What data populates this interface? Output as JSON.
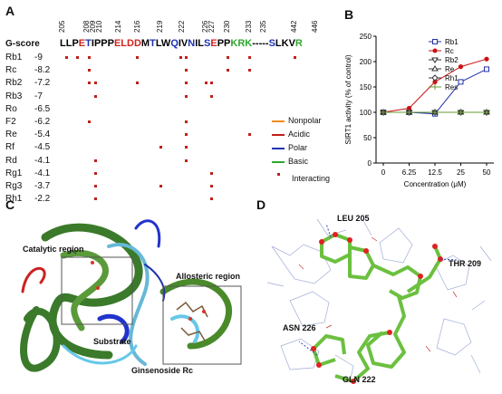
{
  "panelA": {
    "label": "A",
    "gscore_header": "G-score",
    "residue_numbers": [
      "205",
      "208",
      "209",
      "210",
      "214",
      "216",
      "219",
      "222",
      "226",
      "227",
      "230",
      "233",
      "235",
      "442",
      "446"
    ],
    "sequence": [
      {
        "t": "LL",
        "c": "#000"
      },
      {
        "t": "P",
        "c": "#000"
      },
      {
        "t": "E",
        "c": "#d0241c"
      },
      {
        "t": "T",
        "c": "#1a33b8"
      },
      {
        "t": "I",
        "c": "#000"
      },
      {
        "t": "PPP",
        "c": "#000"
      },
      {
        "t": "E",
        "c": "#d0241c"
      },
      {
        "t": "LDD",
        "c": "#d0241c"
      },
      {
        "t": "M",
        "c": "#000"
      },
      {
        "t": "T",
        "c": "#1a33b8"
      },
      {
        "t": "LW",
        "c": "#000"
      },
      {
        "t": "Q",
        "c": "#1a33b8"
      },
      {
        "t": "IV",
        "c": "#000"
      },
      {
        "t": "N",
        "c": "#1a33b8"
      },
      {
        "t": "IL",
        "c": "#000"
      },
      {
        "t": "S",
        "c": "#1a33b8"
      },
      {
        "t": "E",
        "c": "#d0241c"
      },
      {
        "t": "PP",
        "c": "#000"
      },
      {
        "t": "K",
        "c": "#2ea82e"
      },
      {
        "t": "R",
        "c": "#2ea82e"
      },
      {
        "t": "K",
        "c": "#2ea82e"
      },
      {
        "t": "-----",
        "c": "#000"
      },
      {
        "t": "S",
        "c": "#1a33b8"
      },
      {
        "t": "LKV",
        "c": "#000"
      },
      {
        "t": "R",
        "c": "#2ea82e"
      }
    ],
    "compounds": [
      {
        "name": "Rb1",
        "score": "-9"
      },
      {
        "name": "Rc",
        "score": "-8.2"
      },
      {
        "name": "Rb2",
        "score": "-7.2"
      },
      {
        "name": "Rb3",
        "score": "-7"
      },
      {
        "name": "Ro",
        "score": "-6.5"
      },
      {
        "name": "F2",
        "score": "-6.2"
      },
      {
        "name": "Re",
        "score": "-5.4"
      },
      {
        "name": "Rf",
        "score": "-4.5"
      },
      {
        "name": "Rd",
        "score": "-4.1"
      },
      {
        "name": "Rg1",
        "score": "-4.1"
      },
      {
        "name": "Rg3",
        "score": "-3.7"
      },
      {
        "name": "Rh1",
        "score": "-2.2"
      }
    ],
    "legend": [
      {
        "label": "Nonpolar",
        "color": "#f08c1e"
      },
      {
        "label": "Acidic",
        "color": "#c0201a"
      },
      {
        "label": "Polar",
        "color": "#1a33b8"
      },
      {
        "label": "Basic",
        "color": "#2ea82e"
      },
      {
        "label": "Interacting",
        "color": "#c0201a"
      }
    ]
  },
  "panelB": {
    "label": "B",
    "chart_data": {
      "type": "line",
      "ylabel": "SIRT1 activity (% of control)",
      "xlabel": "Concentration (μM)",
      "categories": [
        "0",
        "6.25",
        "12.5",
        "25",
        "50"
      ],
      "ylim": [
        0,
        250
      ],
      "yticks": [
        "0",
        "50",
        "100",
        "150",
        "200",
        "250"
      ],
      "series": [
        {
          "name": "Rb1",
          "color": "#2233aa",
          "marker": "square-open",
          "values": [
            100,
            100,
            97,
            160,
            185
          ]
        },
        {
          "name": "Rc",
          "color": "#cc1111",
          "marker": "circle-filled",
          "values": [
            100,
            108,
            160,
            190,
            205
          ]
        },
        {
          "name": "Rb2",
          "color": "#333333",
          "marker": "triangle-down",
          "values": [
            100,
            100,
            100,
            100,
            100
          ]
        },
        {
          "name": "Re",
          "color": "#333333",
          "marker": "triangle-open",
          "values": [
            100,
            100,
            100,
            100,
            100
          ]
        },
        {
          "name": "Rh1",
          "color": "#333333",
          "marker": "diamond-open",
          "values": [
            100,
            100,
            100,
            100,
            100
          ]
        },
        {
          "name": "Res",
          "color": "#669933",
          "marker": "plus",
          "values": [
            100,
            100,
            100,
            100,
            100
          ]
        }
      ]
    }
  },
  "panelC": {
    "label": "C",
    "catalytic": "Catalytic region",
    "allosteric": "Allosteric region",
    "substrate": "Substrate",
    "ginsenoside": "Ginsenoside Rc"
  },
  "panelD": {
    "label": "D",
    "leu": "LEU 205",
    "thr": "THR 209",
    "asn": "ASN 226",
    "gln": "GLN 222"
  }
}
